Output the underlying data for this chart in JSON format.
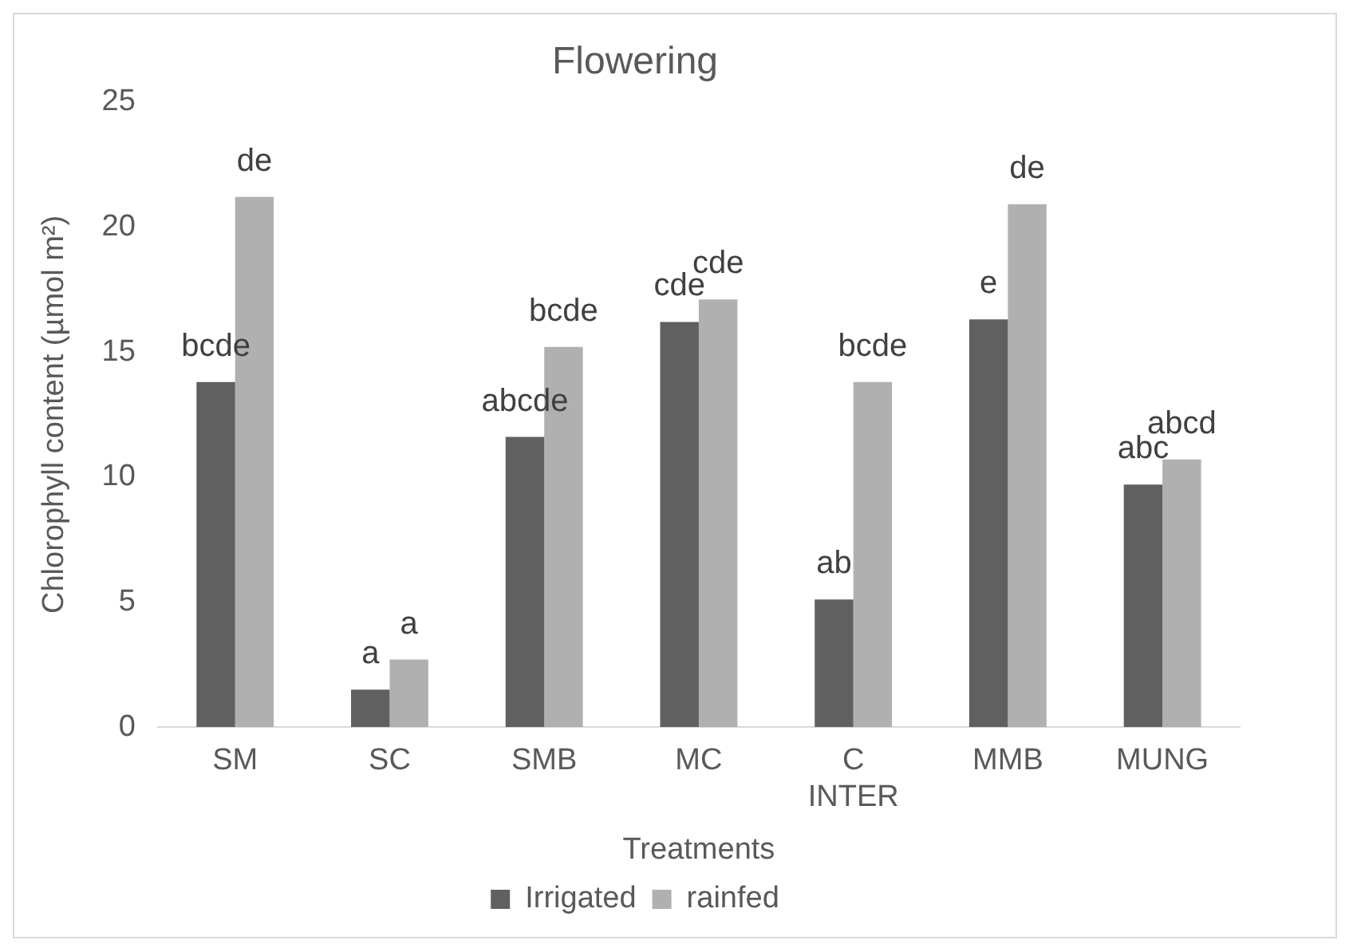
{
  "chart_data": {
    "type": "bar",
    "title": "Flowering",
    "xlabel": "Treatments",
    "ylabel": "Chlorophyll content (µmol m²)",
    "categories": [
      "SM",
      "SC",
      "SMB",
      "MC",
      "C\nINTER",
      "MMB",
      "MUNG"
    ],
    "series": [
      {
        "name": "Irrigated",
        "color": "#606060",
        "values": [
          13.8,
          1.5,
          11.6,
          16.2,
          5.1,
          16.3,
          9.7
        ],
        "value_labels": [
          "bcde",
          "a",
          "abcde",
          "cde",
          "ab",
          "e",
          "abc"
        ]
      },
      {
        "name": "rainfed",
        "color": "#b0b0b0",
        "values": [
          21.2,
          2.7,
          15.2,
          17.1,
          13.8,
          20.9,
          10.7
        ],
        "value_labels": [
          "de",
          "a",
          "bcde",
          "cde",
          "bcde",
          "de",
          "abcd"
        ]
      }
    ],
    "ylim": [
      0,
      25
    ],
    "yticks": [
      0,
      5,
      10,
      15,
      20,
      25
    ],
    "grid": false,
    "legend": "bottom"
  }
}
